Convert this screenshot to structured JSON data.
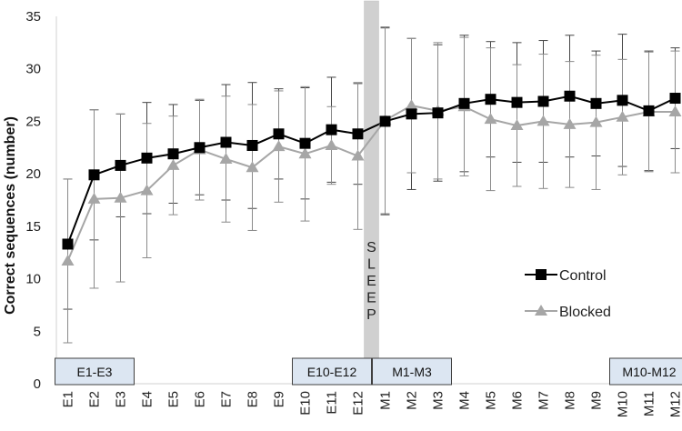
{
  "chart_data": {
    "type": "line",
    "ylabel": "Correct sequences (number)",
    "xlabel": "",
    "ylim": [
      0,
      35
    ],
    "yticks": [
      0,
      5,
      10,
      15,
      20,
      25,
      30,
      35
    ],
    "categories": [
      "E1",
      "E2",
      "E3",
      "E4",
      "E5",
      "E6",
      "E7",
      "E8",
      "E9",
      "E10",
      "E11",
      "E12",
      "M1",
      "M2",
      "M3",
      "M4",
      "M5",
      "M6",
      "M7",
      "M8",
      "M9",
      "M10",
      "M11",
      "M12"
    ],
    "series": [
      {
        "name": "Control",
        "color": "#000000",
        "marker": "square",
        "values": [
          13.3,
          19.9,
          20.8,
          21.5,
          21.9,
          22.5,
          23.0,
          22.7,
          23.8,
          22.9,
          24.2,
          23.8,
          25.0,
          25.7,
          25.8,
          26.7,
          27.1,
          26.8,
          26.9,
          27.4,
          26.7,
          27.0,
          26.0,
          27.2
        ],
        "error": [
          6.2,
          6.2,
          4.9,
          5.3,
          4.7,
          4.5,
          5.5,
          6.0,
          4.3,
          5.3,
          5.0,
          4.8,
          8.9,
          7.2,
          6.5,
          6.5,
          5.5,
          5.7,
          5.8,
          5.8,
          5.0,
          6.3,
          5.7,
          4.8
        ]
      },
      {
        "name": "Blocked",
        "color": "#a6a6a6",
        "marker": "triangle",
        "values": [
          11.7,
          17.6,
          17.7,
          18.4,
          20.8,
          22.3,
          21.4,
          20.6,
          22.6,
          21.9,
          22.7,
          21.7,
          25.1,
          26.5,
          26.0,
          26.4,
          25.2,
          24.6,
          25.0,
          24.7,
          24.9,
          25.4,
          25.9,
          25.9
        ],
        "error": [
          7.8,
          8.5,
          8.0,
          6.4,
          4.7,
          4.8,
          6.0,
          6.0,
          5.3,
          6.4,
          3.7,
          7.0,
          8.9,
          6.4,
          6.5,
          6.6,
          6.8,
          5.8,
          6.4,
          6.0,
          6.4,
          5.5,
          5.7,
          5.8
        ]
      }
    ],
    "legend_position": "right",
    "grid": false
  },
  "annotations": {
    "sleep_label": "SLEEP",
    "sleep_between": [
      "E12",
      "M1"
    ],
    "phase_boxes": [
      {
        "label": "E1-E3",
        "start": "E1",
        "end": "E3"
      },
      {
        "label": "E10-E12",
        "start": "E10",
        "end": "E12"
      },
      {
        "label": "M1-M3",
        "start": "M1",
        "end": "M3"
      },
      {
        "label": "M10-M12",
        "start": "M10",
        "end": "M12"
      }
    ]
  },
  "colors": {
    "axis": "#d0d0d0",
    "box_fill": "#dce6f2",
    "box_stroke": "#404040",
    "sleep_fill": "#d0d0d0",
    "error_bar": "#555555"
  }
}
